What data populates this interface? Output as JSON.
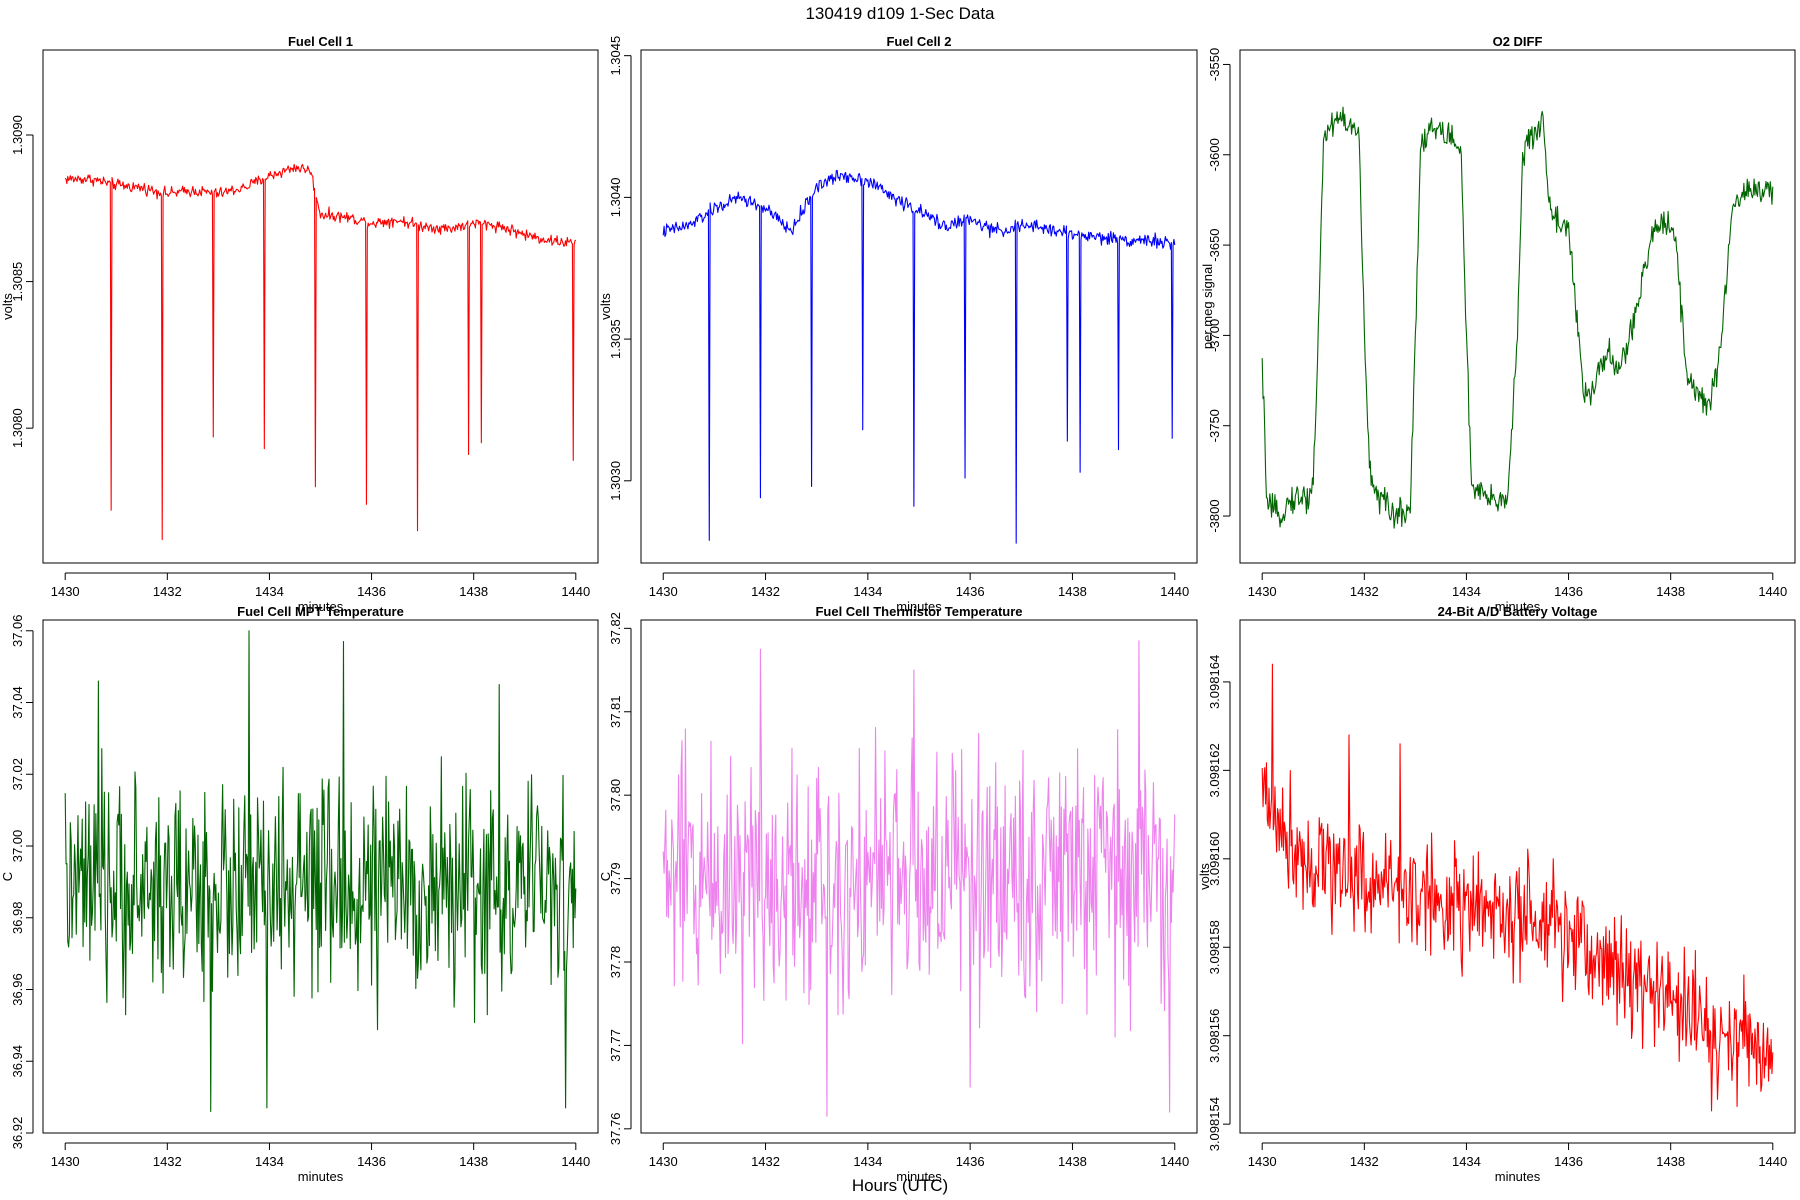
{
  "figure": {
    "title": "130419   d109   1-Sec Data",
    "xlabel": "Hours (UTC)"
  },
  "chart_data": [
    {
      "type": "line",
      "title": "Fuel Cell 1",
      "xlabel": "minutes",
      "ylabel": "volts",
      "color": "#ff0000",
      "xlim": [
        1430,
        1440
      ],
      "ylim": [
        1.30754,
        1.30929
      ],
      "xticks": [
        "1430",
        "1432",
        "1434",
        "1436",
        "1438",
        "1440"
      ],
      "yticks": [
        "1.3080",
        "1.3085",
        "1.3090"
      ],
      "ytick_values": [
        1.308,
        1.3085,
        1.309
      ],
      "series": [
        {
          "x": [
            1430,
            1430.5,
            1431,
            1431.5,
            1432,
            1432.5,
            1433,
            1433.5,
            1434,
            1434.5,
            1434.8,
            1435,
            1435.5,
            1436,
            1436.5,
            1437,
            1437.5,
            1438,
            1438.5,
            1439,
            1439.5,
            1440
          ],
          "y": [
            1.30885,
            1.30885,
            1.30883,
            1.30882,
            1.3088,
            1.30881,
            1.3088,
            1.30882,
            1.30886,
            1.30889,
            1.30888,
            1.30873,
            1.30872,
            1.3087,
            1.30871,
            1.30869,
            1.30868,
            1.3087,
            1.30869,
            1.30866,
            1.30864,
            1.30863
          ],
          "noise": 1.2e-05,
          "spikes": [
            [
              1430.9,
              1.30772
            ],
            [
              1431.9,
              1.30762
            ],
            [
              1432.9,
              1.30797
            ],
            [
              1433.9,
              1.30793
            ],
            [
              1434.9,
              1.3078
            ],
            [
              1435.9,
              1.30774
            ],
            [
              1436.9,
              1.30765
            ],
            [
              1437.9,
              1.30791
            ],
            [
              1438.15,
              1.30795
            ],
            [
              1439.95,
              1.30789
            ]
          ]
        }
      ]
    },
    {
      "type": "line",
      "title": "Fuel Cell 2",
      "xlabel": "minutes",
      "ylabel": "volts",
      "color": "#0000ff",
      "xlim": [
        1430,
        1440
      ],
      "ylim": [
        1.30271,
        1.30452
      ],
      "xticks": [
        "1430",
        "1432",
        "1434",
        "1436",
        "1438",
        "1440"
      ],
      "yticks": [
        "1.3030",
        "1.3035",
        "1.3040",
        "1.3045"
      ],
      "ytick_values": [
        1.303,
        1.3035,
        1.304,
        1.3045
      ],
      "series": [
        {
          "x": [
            1430,
            1430.5,
            1431,
            1431.5,
            1432,
            1432.5,
            1433,
            1433.5,
            1434,
            1434.5,
            1435,
            1435.5,
            1436,
            1436.5,
            1437,
            1437.5,
            1438,
            1438.5,
            1439,
            1439.5,
            1440
          ],
          "y": [
            1.30388,
            1.3039,
            1.30396,
            1.304,
            1.30396,
            1.30388,
            1.30404,
            1.30408,
            1.30406,
            1.304,
            1.30395,
            1.3039,
            1.30392,
            1.30388,
            1.3039,
            1.30389,
            1.30387,
            1.30386,
            1.30385,
            1.30385,
            1.30383
          ],
          "noise": 1.5e-05,
          "spikes": [
            [
              1430.9,
              1.30279
            ],
            [
              1431.9,
              1.30294
            ],
            [
              1432.9,
              1.30298
            ],
            [
              1433.9,
              1.30318
            ],
            [
              1434.9,
              1.30291
            ],
            [
              1435.9,
              1.30301
            ],
            [
              1436.9,
              1.30278
            ],
            [
              1437.9,
              1.30314
            ],
            [
              1438.15,
              1.30303
            ],
            [
              1438.9,
              1.30311
            ],
            [
              1439.95,
              1.30315
            ]
          ]
        }
      ]
    },
    {
      "type": "line",
      "title": "O2 DIFF",
      "xlabel": "minutes",
      "ylabel": "per meg signal",
      "color": "#006400",
      "xlim": [
        1430,
        1440
      ],
      "ylim": [
        -3826,
        -3542
      ],
      "xticks": [
        "1430",
        "1432",
        "1434",
        "1436",
        "1438",
        "1440"
      ],
      "yticks": [
        "-3800",
        "-3750",
        "-3700",
        "-3650",
        "-3600",
        "-3550"
      ],
      "ytick_values": [
        -3800,
        -3750,
        -3700,
        -3650,
        -3600,
        -3550
      ],
      "series": [
        {
          "x": [
            1430,
            1430.1,
            1430.3,
            1430.6,
            1430.9,
            1431.0,
            1431.1,
            1431.2,
            1431.5,
            1431.9,
            1432.0,
            1432.1,
            1432.3,
            1432.6,
            1432.9,
            1433.0,
            1433.1,
            1433.3,
            1433.7,
            1433.9,
            1434.0,
            1434.1,
            1434.5,
            1434.8,
            1435.0,
            1435.1,
            1435.3,
            1435.5,
            1435.6,
            1435.7,
            1436.0,
            1436.3,
            1436.5,
            1436.6,
            1436.8,
            1437.0,
            1437.3,
            1437.6,
            1437.7,
            1437.9,
            1438.1,
            1438.3,
            1438.7,
            1438.9,
            1439.0,
            1439.2,
            1439.5,
            1439.8,
            1440
          ],
          "y": [
            -3718,
            -3795,
            -3800,
            -3790,
            -3790,
            -3780,
            -3700,
            -3590,
            -3578,
            -3590,
            -3700,
            -3775,
            -3790,
            -3800,
            -3795,
            -3700,
            -3595,
            -3585,
            -3590,
            -3600,
            -3700,
            -3785,
            -3792,
            -3790,
            -3700,
            -3600,
            -3590,
            -3580,
            -3620,
            -3635,
            -3640,
            -3735,
            -3730,
            -3715,
            -3712,
            -3720,
            -3690,
            -3650,
            -3640,
            -3635,
            -3645,
            -3720,
            -3740,
            -3725,
            -3700,
            -3630,
            -3618,
            -3620,
            -3622
          ],
          "noise": 5,
          "spikes": []
        }
      ]
    },
    {
      "type": "line",
      "title": "Fuel Cell MPT Temperature",
      "xlabel": "minutes",
      "ylabel": "C",
      "color": "#006400",
      "xlim": [
        1430,
        1440
      ],
      "ylim": [
        36.92,
        37.063
      ],
      "xticks": [
        "1430",
        "1432",
        "1434",
        "1436",
        "1438",
        "1440"
      ],
      "yticks": [
        "36.92",
        "36.94",
        "36.96",
        "36.98",
        "37.00",
        "37.02",
        "37.04",
        "37.06"
      ],
      "ytick_values": [
        36.92,
        36.94,
        36.96,
        36.98,
        37.0,
        37.02,
        37.04,
        37.06
      ],
      "series": [
        {
          "x": [
            1430,
            1440
          ],
          "y": [
            36.988,
            36.988
          ],
          "noise": 0.018,
          "spikes": [
            [
              1432.85,
              36.926
            ],
            [
              1433.6,
              37.06
            ],
            [
              1433.95,
              36.927
            ],
            [
              1439.8,
              36.927
            ],
            [
              1435.45,
              37.057
            ],
            [
              1438.5,
              37.045
            ],
            [
              1430.65,
              37.046
            ]
          ]
        }
      ]
    },
    {
      "type": "line",
      "title": "Fuel Cell Thermistor Temperature",
      "xlabel": "minutes",
      "ylabel": "C",
      "color": "#ee82ee",
      "xlim": [
        1430,
        1440
      ],
      "ylim": [
        37.7595,
        37.821
      ],
      "xticks": [
        "1430",
        "1432",
        "1434",
        "1436",
        "1438",
        "1440"
      ],
      "yticks": [
        "37.76",
        "37.77",
        "37.78",
        "37.79",
        "37.80",
        "37.81",
        "37.82"
      ],
      "ytick_values": [
        37.76,
        37.77,
        37.78,
        37.79,
        37.8,
        37.81,
        37.82
      ],
      "series": [
        {
          "x": [
            1430,
            1440
          ],
          "y": [
            37.7905,
            37.7905
          ],
          "noise": 0.0095,
          "spikes": [
            [
              1433.2,
              37.7615
            ],
            [
              1439.3,
              37.8185
            ],
            [
              1439.9,
              37.762
            ],
            [
              1431.9,
              37.8175
            ],
            [
              1436.0,
              37.765
            ],
            [
              1434.9,
              37.815
            ]
          ]
        }
      ]
    },
    {
      "type": "line",
      "title": "24-Bit A/D Battery Voltage",
      "xlabel": "minutes",
      "ylabel": "volts",
      "color": "#ff0000",
      "xlim": [
        1430,
        1440
      ],
      "ylim": [
        3.0981538,
        3.0981654
      ],
      "xticks": [
        "1430",
        "1432",
        "1434",
        "1436",
        "1438",
        "1440"
      ],
      "yticks": [
        "3.098154",
        "3.098156",
        "3.098158",
        "3.098160",
        "3.098162",
        "3.098164"
      ],
      "ytick_values": [
        3.098154,
        3.098156,
        3.098158,
        3.09816,
        3.098162,
        3.098164
      ],
      "series": [
        {
          "x": [
            1430,
            1430.5,
            1431,
            1432,
            1433,
            1434,
            1435,
            1436,
            1437,
            1438,
            1439,
            1440
          ],
          "y": [
            3.0981615,
            3.0981605,
            3.09816,
            3.0981596,
            3.0981592,
            3.0981589,
            3.0981586,
            3.0981582,
            3.0981575,
            3.0981568,
            3.098156,
            3.0981557
          ],
          "noise": 8e-07,
          "spikes": [
            [
              1430.2,
              3.0981644
            ],
            [
              1431.7,
              3.0981628
            ],
            [
              1432.7,
              3.0981626
            ],
            [
              1438.8,
              3.0981543
            ],
            [
              1439.3,
              3.0981544
            ]
          ]
        }
      ]
    }
  ]
}
